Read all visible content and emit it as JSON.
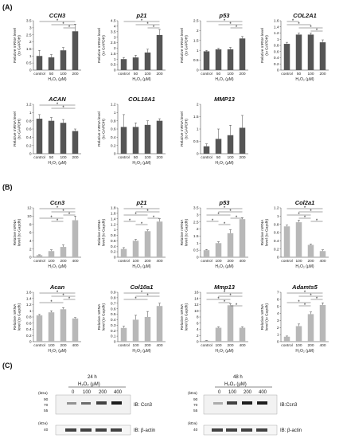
{
  "panels": {
    "A": "(A)",
    "B": "(B)",
    "C": "(C)"
  },
  "colors": {
    "A": "#555555",
    "B": "#b8b8b8"
  },
  "chart_data": [
    {
      "type": "bar",
      "panel": "A",
      "title": "CCN3",
      "categories": [
        "control",
        "50",
        "100",
        "200"
      ],
      "values": [
        1.0,
        0.9,
        1.4,
        2.75
      ],
      "errors": [
        0.4,
        0.2,
        0.2,
        0.5
      ],
      "ylim": [
        0,
        3.5
      ],
      "yticks": [
        "0",
        "0.5",
        "1",
        "1.5",
        "2",
        "2.5",
        "3",
        "3.5"
      ],
      "ylabel": [
        "Relative mRNA level",
        "(to GAPDH)"
      ],
      "xlabel": "H₂O₂ (μM)",
      "stars": [
        [
          "control",
          "200"
        ],
        [
          "50",
          "200"
        ],
        [
          "100",
          "200"
        ]
      ]
    },
    {
      "type": "bar",
      "panel": "A",
      "title": "p21",
      "categories": [
        "control",
        "50",
        "100",
        "200"
      ],
      "values": [
        1.0,
        1.15,
        1.6,
        3.2
      ],
      "errors": [
        0.15,
        0.2,
        0.3,
        0.5
      ],
      "ylim": [
        0,
        4.5
      ],
      "yticks": [
        "0",
        "0.5",
        "1",
        "1.5",
        "2",
        "2.5",
        "3",
        "3.5",
        "4",
        "4.5"
      ],
      "ylabel": [
        "Relative mRNA level",
        "(to GAPDH)"
      ],
      "xlabel": "H₂O₂ (μM)",
      "stars": [
        [
          "control",
          "200"
        ],
        [
          "50",
          "200"
        ],
        [
          "100",
          "200"
        ]
      ]
    },
    {
      "type": "bar",
      "panel": "A",
      "title": "p53",
      "categories": [
        "control",
        "50",
        "100",
        "200"
      ],
      "values": [
        0.95,
        1.05,
        1.05,
        1.6
      ],
      "errors": [
        0.05,
        0.05,
        0.1,
        0.1
      ],
      "ylim": [
        0,
        2.5
      ],
      "yticks": [
        "0",
        "0.5",
        "1",
        "1.5",
        "2",
        "2.5"
      ],
      "ylabel": [
        "Relative mRNA level",
        "(to GAPDH)"
      ],
      "xlabel": "H₂O₂ (μM)",
      "stars": [
        [
          "control",
          "200"
        ],
        [
          "50",
          "200"
        ],
        [
          "100",
          "200"
        ]
      ]
    },
    {
      "type": "bar",
      "panel": "A",
      "title": "COL2A1",
      "categories": [
        "control",
        "50",
        "100",
        "200"
      ],
      "values": [
        0.85,
        1.15,
        1.15,
        0.9
      ],
      "errors": [
        0.05,
        0.05,
        0.05,
        0.08
      ],
      "ylim": [
        0,
        1.6
      ],
      "yticks": [
        "0",
        "0.2",
        "0.4",
        "0.6",
        "0.8",
        "1",
        "1.2",
        "1.4",
        "1.6"
      ],
      "ylabel": [
        "Relative mRNA level",
        "(to GAPDH)"
      ],
      "xlabel": "H₂O₂ (μM)",
      "stars": [
        [
          "control",
          "50"
        ],
        [
          "control",
          "100"
        ],
        [
          "50",
          "200"
        ],
        [
          "100",
          "200"
        ]
      ]
    },
    {
      "type": "bar",
      "panel": "A",
      "title": "ACAN",
      "categories": [
        "control",
        "50",
        "100",
        "200"
      ],
      "values": [
        0.85,
        0.8,
        0.75,
        0.55
      ],
      "errors": [
        0.1,
        0.08,
        0.08,
        0.05
      ],
      "ylim": [
        0,
        1.2
      ],
      "yticks": [
        "0",
        "0.2",
        "0.4",
        "0.6",
        "0.8",
        "1",
        "1.2"
      ],
      "ylabel": [
        "Relative mRNA level",
        "(to GAPDH)"
      ],
      "xlabel": "H₂O₂ (μM)",
      "stars": [
        [
          "control",
          "200"
        ],
        [
          "50",
          "200"
        ]
      ]
    },
    {
      "type": "bar",
      "panel": "A",
      "title": "COL10A1",
      "categories": [
        "control",
        "50",
        "100",
        "200"
      ],
      "values": [
        0.65,
        0.65,
        0.7,
        0.8
      ],
      "errors": [
        0.3,
        0.1,
        0.1,
        0.05
      ],
      "ylim": [
        0,
        1.2
      ],
      "yticks": [
        "0",
        "0.2",
        "0.4",
        "0.6",
        "0.8",
        "1",
        "1.2"
      ],
      "ylabel": [
        "Relative mRNA level",
        "(to GAPDH)"
      ],
      "xlabel": "H₂O₂ (μM)",
      "stars": []
    },
    {
      "type": "bar",
      "panel": "A",
      "title": "MMP13",
      "categories": [
        "control",
        "50",
        "100",
        "200"
      ],
      "values": [
        0.3,
        0.6,
        0.75,
        1.05
      ],
      "errors": [
        0.1,
        0.4,
        0.4,
        0.5
      ],
      "ylim": [
        0,
        2
      ],
      "yticks": [
        "0",
        "0.5",
        "1",
        "1.5",
        "2"
      ],
      "ylabel": [
        "Relative mRNA level",
        "(to GAPDH)"
      ],
      "xlabel": "H₂O₂ (μM)",
      "stars": []
    },
    {
      "type": "bar",
      "panel": "B",
      "title": "Ccn3",
      "categories": [
        "control",
        "100",
        "200",
        "400"
      ],
      "values": [
        0.5,
        1.5,
        2.5,
        9.0
      ],
      "errors": [
        0.1,
        0.3,
        0.5,
        1.0
      ],
      "ylim": [
        0,
        12
      ],
      "yticks": [
        "0",
        "2",
        "4",
        "6",
        "8",
        "10",
        "12"
      ],
      "ylabel": [
        "Relative mRNA",
        "level (to Gapdh)"
      ],
      "xlabel": "H₂O₂ (μM)",
      "stars": [
        [
          "control",
          "400"
        ],
        [
          "100",
          "400"
        ],
        [
          "200",
          "400"
        ],
        [
          "control",
          "200"
        ],
        [
          "100",
          "200"
        ]
      ]
    },
    {
      "type": "bar",
      "panel": "B",
      "title": "p21",
      "categories": [
        "control",
        "100",
        "200",
        "400"
      ],
      "values": [
        0.3,
        0.6,
        0.95,
        1.3
      ],
      "errors": [
        0.05,
        0.05,
        0.05,
        0.1
      ],
      "ylim": [
        0,
        1.8
      ],
      "yticks": [
        "0",
        "0.2",
        "0.4",
        "0.6",
        "0.8",
        "1",
        "1.2",
        "1.4",
        "1.6",
        "1.8"
      ],
      "ylabel": [
        "Relative mRNA",
        "level (to Gapdh)"
      ],
      "xlabel": "H₂O₂ (μM)",
      "stars": [
        [
          "control",
          "400"
        ],
        [
          "100",
          "400"
        ],
        [
          "control",
          "200"
        ],
        [
          "200",
          "400"
        ],
        [
          "control",
          "100"
        ],
        [
          "100",
          "200"
        ]
      ]
    },
    {
      "type": "bar",
      "panel": "B",
      "title": "p53",
      "categories": [
        "control",
        "100",
        "200",
        "400"
      ],
      "values": [
        0.5,
        1.0,
        1.7,
        2.7
      ],
      "errors": [
        0.05,
        0.1,
        0.25,
        0.1
      ],
      "ylim": [
        0,
        3.5
      ],
      "yticks": [
        "0",
        "0.5",
        "1",
        "1.5",
        "2",
        "2.5",
        "3",
        "3.5"
      ],
      "ylabel": [
        "Relative mRNA",
        "level (to Gapdh)"
      ],
      "xlabel": "H₂O₂ (μM)",
      "stars": [
        [
          "control",
          "400"
        ],
        [
          "100",
          "400"
        ],
        [
          "control",
          "200"
        ],
        [
          "200",
          "400"
        ],
        [
          "control",
          "100"
        ],
        [
          "100",
          "200"
        ]
      ]
    },
    {
      "type": "bar",
      "panel": "B",
      "title": "Col2a1",
      "categories": [
        "control",
        "100",
        "200",
        "400"
      ],
      "values": [
        0.75,
        0.85,
        0.3,
        0.15
      ],
      "errors": [
        0.03,
        0.05,
        0.02,
        0.03
      ],
      "ylim": [
        0,
        1.2
      ],
      "yticks": [
        "0",
        "0.2",
        "0.4",
        "0.6",
        "0.8",
        "1",
        "1.2"
      ],
      "ylabel": [
        "Relative mRNA",
        "level (to Gapdh)"
      ],
      "xlabel": "H₂O₂ (μM)",
      "stars": [
        [
          "control",
          "400"
        ],
        [
          "100",
          "400"
        ],
        [
          "control",
          "200"
        ],
        [
          "100",
          "200"
        ],
        [
          "200",
          "400"
        ]
      ]
    },
    {
      "type": "bar",
      "panel": "B",
      "title": "Acan",
      "categories": [
        "control",
        "100",
        "200",
        "400"
      ],
      "values": [
        0.85,
        0.95,
        1.05,
        0.75
      ],
      "errors": [
        0.03,
        0.05,
        0.05,
        0.03
      ],
      "ylim": [
        0,
        1.6
      ],
      "yticks": [
        "0",
        "0.2",
        "0.4",
        "0.6",
        "0.8",
        "1",
        "1.2",
        "1.4",
        "1.6"
      ],
      "ylabel": [
        "Relative mRNA",
        "level (to Gapdh)"
      ],
      "xlabel": "H₂O₂ (μM)",
      "stars": [
        [
          "control",
          "400"
        ],
        [
          "100",
          "400"
        ],
        [
          "200",
          "400"
        ],
        [
          "control",
          "200"
        ]
      ]
    },
    {
      "type": "bar",
      "panel": "B",
      "title": "Col10a1",
      "categories": [
        "control",
        "100",
        "200",
        "400"
      ],
      "values": [
        0.25,
        0.4,
        0.45,
        0.65
      ],
      "errors": [
        0.03,
        0.08,
        0.1,
        0.05
      ],
      "ylim": [
        0,
        0.9
      ],
      "yticks": [
        "0",
        "0.1",
        "0.2",
        "0.3",
        "0.4",
        "0.5",
        "0.6",
        "0.7",
        "0.8",
        "0.9"
      ],
      "ylabel": [
        "Relative mRNA",
        "level (to Gapdh)"
      ],
      "xlabel": "H₂O₂ (μM)",
      "stars": [
        [
          "control",
          "400"
        ],
        [
          "100",
          "400"
        ],
        [
          "control",
          "200"
        ]
      ]
    },
    {
      "type": "bar",
      "panel": "B",
      "title": "Mmp13",
      "categories": [
        "control",
        "100",
        "200",
        "400"
      ],
      "values": [
        0.3,
        4.5,
        11.8,
        4.5
      ],
      "errors": [
        0.1,
        0.3,
        0.5,
        0.3
      ],
      "ylim": [
        0,
        16
      ],
      "yticks": [
        "0",
        "2",
        "4",
        "6",
        "8",
        "10",
        "12",
        "14",
        "16"
      ],
      "ylabel": [
        "Relative mRNA",
        "level (to Gapdh)"
      ],
      "xlabel": "H₂O₂ (μM)",
      "stars": [
        [
          "control",
          "400"
        ],
        [
          "100",
          "400"
        ],
        [
          "control",
          "200"
        ],
        [
          "100",
          "200"
        ],
        [
          "200",
          "400"
        ]
      ]
    },
    {
      "type": "bar",
      "panel": "B",
      "title": "Adamts5",
      "categories": [
        "control",
        "100",
        "200",
        "400"
      ],
      "values": [
        0.7,
        2.2,
        3.9,
        5.2
      ],
      "errors": [
        0.1,
        0.3,
        0.3,
        0.3
      ],
      "ylim": [
        0,
        7
      ],
      "yticks": [
        "0",
        "1",
        "2",
        "3",
        "4",
        "5",
        "6",
        "7"
      ],
      "ylabel": [
        "Relative mRNA",
        "level (to Gapdh)"
      ],
      "xlabel": "H₂O₂ (μM)",
      "stars": [
        [
          "control",
          "400"
        ],
        [
          "100",
          "400"
        ],
        [
          "200",
          "400"
        ],
        [
          "control",
          "200"
        ],
        [
          "100",
          "200"
        ]
      ]
    }
  ],
  "western": {
    "blots": [
      {
        "time": "24 h",
        "treatment": "H₂O₂ (μM)",
        "lanes": [
          "0",
          "100",
          "200",
          "400"
        ],
        "ccn3_kda": [
          "(kDa)",
          "90",
          "70",
          "55"
        ],
        "actin_kda": [
          "(kDa)",
          "40"
        ],
        "ccn3_label": "IB: Ccn3",
        "actin_label": "IB: β-actin"
      },
      {
        "time": "48 h",
        "treatment": "H₂O₂ (μM)",
        "lanes": [
          "0",
          "100",
          "200",
          "400"
        ],
        "ccn3_kda": [
          "(kDa)",
          "90",
          "70",
          "55"
        ],
        "actin_kda": [
          "(kDa)",
          "40"
        ],
        "ccn3_label": "IB:Ccn3",
        "actin_label": "IB: β-actin"
      }
    ]
  }
}
